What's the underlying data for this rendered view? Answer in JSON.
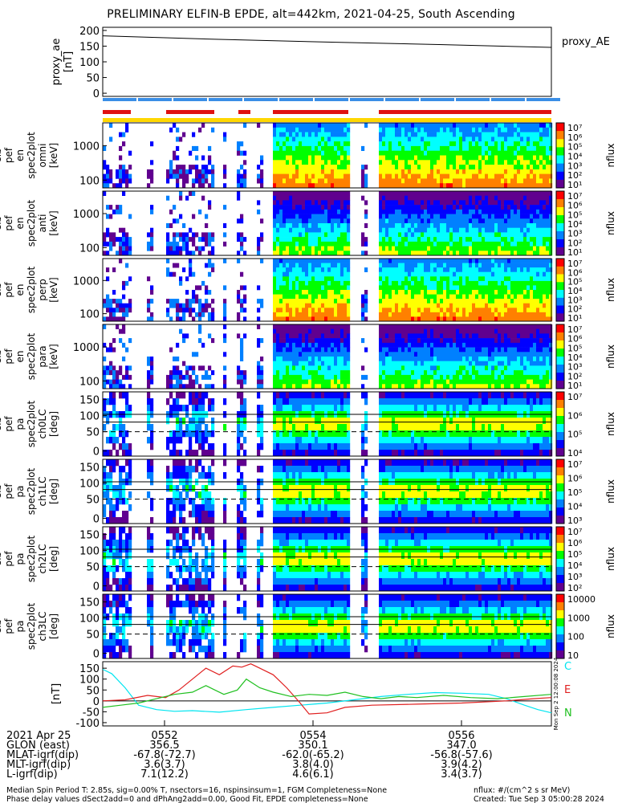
{
  "title": "PRELIMINARY ELFIN-B EPDE, alt=442km, 2021-04-25, South Ascending",
  "proxy_ae": {
    "ylabel_lines": [
      "proxy_ae",
      "[nT]"
    ],
    "yticks": [
      0,
      50,
      100,
      150,
      200
    ],
    "ylim": [
      -10,
      210
    ],
    "legend": "proxy_AE",
    "series": [
      {
        "t": 0.0,
        "v": 183
      },
      {
        "t": 0.25,
        "v": 172
      },
      {
        "t": 0.5,
        "v": 163
      },
      {
        "t": 0.75,
        "v": 155
      },
      {
        "t": 1.0,
        "v": 146
      }
    ]
  },
  "spectral_panels": [
    {
      "label_lines": [
        "elb",
        "pef",
        "en",
        "spec2plot",
        "omni",
        "[keV]"
      ],
      "yticks": [
        "1000",
        "100"
      ],
      "cbar_labels": [
        "10⁷",
        "10⁶",
        "10⁵",
        "10⁴",
        "10³",
        "10²",
        "10¹"
      ],
      "cbar_title": "nflux"
    },
    {
      "label_lines": [
        "elb",
        "pef",
        "en",
        "spec2plot",
        "anti",
        "[keV]"
      ],
      "yticks": [
        "1000",
        "100"
      ],
      "cbar_labels": [
        "10⁷",
        "10⁶",
        "10⁵",
        "10⁴",
        "10³",
        "10²",
        "10¹"
      ],
      "cbar_title": "nflux"
    },
    {
      "label_lines": [
        "elb",
        "pef",
        "en",
        "spec2plot",
        "perp",
        "[keV]"
      ],
      "yticks": [
        "1000",
        "100"
      ],
      "cbar_labels": [
        "10⁷",
        "10⁶",
        "10⁵",
        "10⁴",
        "10³",
        "10²",
        "10¹"
      ],
      "cbar_title": "nflux"
    },
    {
      "label_lines": [
        "elb",
        "pef",
        "en",
        "spec2plot",
        "para",
        "[keV]"
      ],
      "yticks": [
        "1000",
        "100"
      ],
      "cbar_labels": [
        "10⁷",
        "10⁶",
        "10⁵",
        "10⁴",
        "10³",
        "10²",
        "10¹"
      ],
      "cbar_title": "nflux"
    },
    {
      "label_lines": [
        "elb",
        "pef",
        "pa",
        "spec2plot",
        "ch0LC",
        "[deg]"
      ],
      "yticks": [
        "150",
        "100",
        "50",
        "0"
      ],
      "cbar_labels": [
        "10⁷",
        "10⁶",
        "10⁵",
        "10⁴"
      ],
      "cbar_title": "nflux"
    },
    {
      "label_lines": [
        "elb",
        "pef",
        "pa",
        "spec2plot",
        "ch1LC",
        "[deg]"
      ],
      "yticks": [
        "150",
        "100",
        "50",
        "0"
      ],
      "cbar_labels": [
        "10⁷",
        "10⁶",
        "10⁵",
        "10⁴",
        "10³"
      ],
      "cbar_title": "nflux"
    },
    {
      "label_lines": [
        "elb",
        "pef",
        "pa",
        "spec2plot",
        "ch2LC",
        "[deg]"
      ],
      "yticks": [
        "150",
        "100",
        "50",
        "0"
      ],
      "cbar_labels": [
        "10⁷",
        "10⁶",
        "10⁵",
        "10⁴",
        "10³",
        "10²"
      ],
      "cbar_title": "nflux"
    },
    {
      "label_lines": [
        "elb",
        "pef",
        "pa",
        "spec2plot",
        "ch3LC",
        "[deg]"
      ],
      "yticks": [
        "150",
        "100",
        "50",
        "0"
      ],
      "cbar_labels": [
        "10000",
        "1000",
        "100",
        "10"
      ],
      "cbar_title": "nflux"
    }
  ],
  "bfield": {
    "ylabel": "[nT]",
    "yticks": [
      150,
      100,
      50,
      0,
      -50,
      -100
    ],
    "ylim": [
      -115,
      180
    ],
    "legend": [
      {
        "name": "C",
        "color": "#00e5f0"
      },
      {
        "name": "E",
        "color": "#e02020"
      },
      {
        "name": "N",
        "color": "#20c020"
      }
    ],
    "side_note": "Mon Sep 2 12:00:08 2024",
    "series": [
      {
        "name": "C",
        "color": "#00e5f0",
        "points": [
          [
            0.0,
            145
          ],
          [
            0.02,
            125
          ],
          [
            0.05,
            60
          ],
          [
            0.08,
            -20
          ],
          [
            0.12,
            -40
          ],
          [
            0.16,
            -48
          ],
          [
            0.2,
            -45
          ],
          [
            0.26,
            -52
          ],
          [
            0.32,
            -40
          ],
          [
            0.38,
            -30
          ],
          [
            0.44,
            -20
          ],
          [
            0.5,
            -10
          ],
          [
            0.56,
            5
          ],
          [
            0.62,
            20
          ],
          [
            0.68,
            30
          ],
          [
            0.74,
            38
          ],
          [
            0.8,
            35
          ],
          [
            0.86,
            30
          ],
          [
            0.9,
            10
          ],
          [
            0.94,
            -20
          ],
          [
            0.97,
            -40
          ],
          [
            1.0,
            -55
          ]
        ]
      },
      {
        "name": "E",
        "color": "#e02020",
        "points": [
          [
            0.0,
            0
          ],
          [
            0.05,
            5
          ],
          [
            0.1,
            25
          ],
          [
            0.14,
            15
          ],
          [
            0.17,
            50
          ],
          [
            0.2,
            100
          ],
          [
            0.23,
            150
          ],
          [
            0.26,
            120
          ],
          [
            0.29,
            160
          ],
          [
            0.31,
            155
          ],
          [
            0.33,
            170
          ],
          [
            0.35,
            150
          ],
          [
            0.38,
            120
          ],
          [
            0.41,
            60
          ],
          [
            0.44,
            -10
          ],
          [
            0.46,
            -60
          ],
          [
            0.5,
            -55
          ],
          [
            0.54,
            -30
          ],
          [
            0.6,
            -20
          ],
          [
            0.7,
            -15
          ],
          [
            0.8,
            -10
          ],
          [
            0.9,
            0
          ],
          [
            0.96,
            10
          ],
          [
            1.0,
            15
          ]
        ]
      },
      {
        "name": "N",
        "color": "#20c020",
        "points": [
          [
            0.0,
            -30
          ],
          [
            0.04,
            -20
          ],
          [
            0.08,
            -10
          ],
          [
            0.12,
            10
          ],
          [
            0.16,
            30
          ],
          [
            0.2,
            40
          ],
          [
            0.23,
            70
          ],
          [
            0.25,
            50
          ],
          [
            0.27,
            30
          ],
          [
            0.3,
            50
          ],
          [
            0.32,
            100
          ],
          [
            0.35,
            60
          ],
          [
            0.38,
            40
          ],
          [
            0.42,
            20
          ],
          [
            0.46,
            30
          ],
          [
            0.5,
            25
          ],
          [
            0.54,
            40
          ],
          [
            0.58,
            20
          ],
          [
            0.62,
            10
          ],
          [
            0.66,
            20
          ],
          [
            0.7,
            15
          ],
          [
            0.76,
            25
          ],
          [
            0.82,
            15
          ],
          [
            0.88,
            10
          ],
          [
            0.94,
            20
          ],
          [
            1.0,
            30
          ]
        ]
      }
    ]
  },
  "xaxis": {
    "row_labels": [
      "2021 Apr 25",
      "GLON (east)",
      "MLAT-igrf(dip)",
      "MLT-igrf(dip)",
      "L-igrf(dip)"
    ],
    "columns": [
      {
        "tick": "0552",
        "values": [
          "356.5",
          "-67.8(-72.7)",
          "3.6(3.7)",
          "7.1(12.2)"
        ]
      },
      {
        "tick": "0554",
        "values": [
          "350.1",
          "-62.0(-65.2)",
          "3.8(4.0)",
          "4.6(6.1)"
        ]
      },
      {
        "tick": "0556",
        "values": [
          "347.0",
          "-56.8(-57.6)",
          "3.9(4.2)",
          "3.4(3.7)"
        ]
      }
    ]
  },
  "footer": {
    "line1": "Median Spin Period T: 2.85s, sig=0.00% T, nsectors=16, nspinsinsum=1, FGM Completeness=None",
    "line2": "Phase delay values dSect2add=0 and dPhAng2add=0.00, Good Fit, EPDE completeness=None",
    "right1": "nflux: #/(cm^2 s sr MeV)",
    "right2": "Created: Tue Sep  3 05:00:28 2024"
  },
  "colors": {
    "colorbar": [
      "#ff0000",
      "#ff8000",
      "#ffff00",
      "#00ff00",
      "#00ffff",
      "#0080ff",
      "#0000ff",
      "#60008f",
      "#ffffff"
    ],
    "status_bar_blue": "#3a8ee6",
    "status_bar_red": "#e01010",
    "status_bar_yellow": "#ffd700"
  }
}
